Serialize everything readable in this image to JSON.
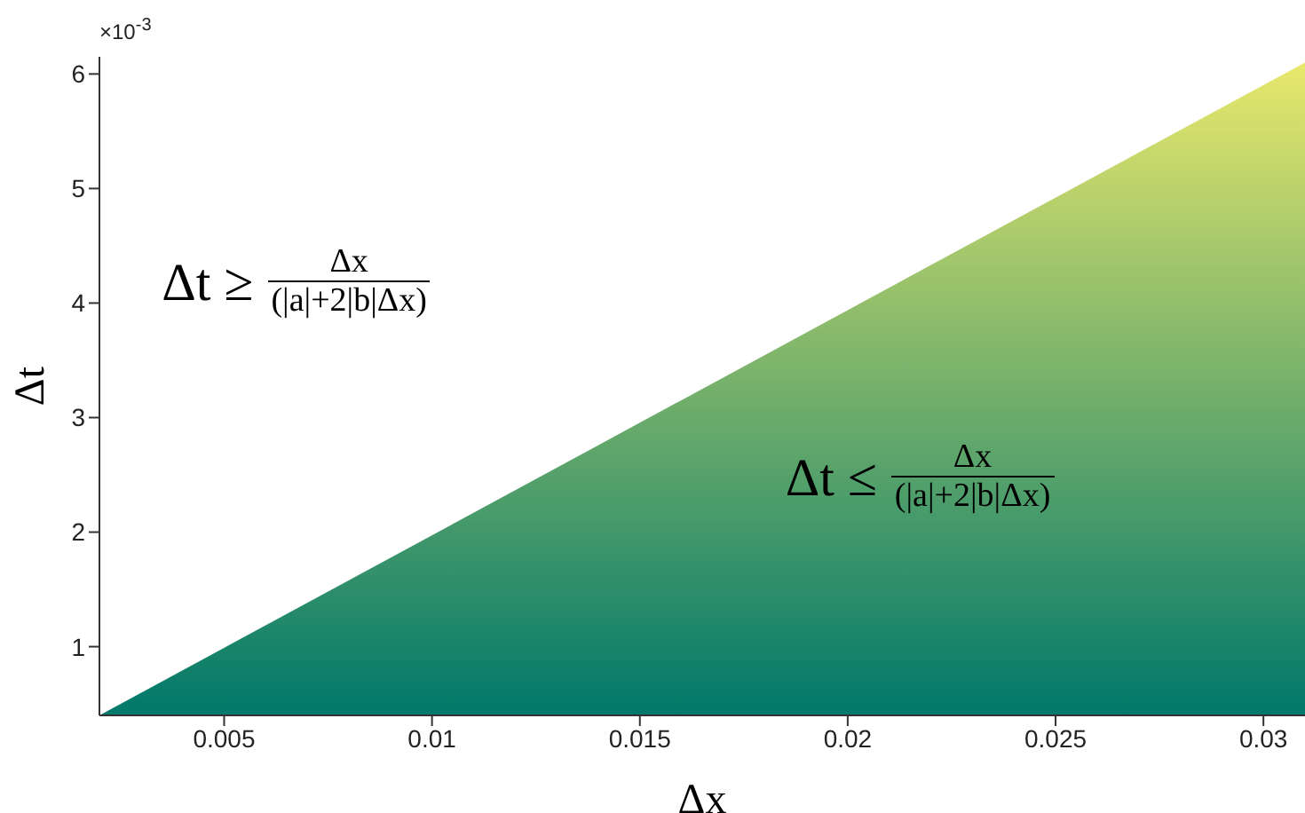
{
  "chart_data": {
    "type": "area",
    "x": [
      0.002,
      0.031
    ],
    "series": [
      {
        "colors": [
          "#00786a",
          "#e8e86c"
        ],
        "values": [
          0.4,
          6.1
        ]
      }
    ],
    "xlim": [
      0.002,
      0.031
    ],
    "xticks": [
      0.005,
      0.01,
      0.015,
      0.02,
      0.025,
      0.03
    ],
    "ylim": [
      0.4,
      6.15
    ],
    "yticks": [
      1,
      2,
      3,
      4,
      5,
      6
    ],
    "xlabel": "Δx",
    "ylabel": "Δt",
    "annotations": [
      "×10$^{-3}$",
      "Δt ≥",
      "Δx",
      "(|a|+2|b|Δx)",
      "Δt ≤",
      "Δx",
      "(|a|+2|b|Δx)"
    ],
    "grid": false,
    "legend": false
  }
}
